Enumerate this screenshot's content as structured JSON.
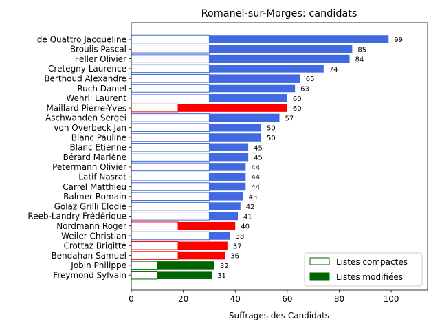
{
  "chart_data": {
    "type": "bar",
    "orientation": "horizontal",
    "stacked": true,
    "title": "Romanel-sur-Morges: candidats",
    "xlabel": "Suffrages des Candidats",
    "ylabel": "",
    "xlim": [
      0,
      114
    ],
    "xticks": [
      "0",
      "20",
      "40",
      "60",
      "80",
      "100"
    ],
    "grid": false,
    "legend_position": "lower-right",
    "legend": [
      {
        "label": "Listes compactes",
        "style": "outline",
        "color": "#006400"
      },
      {
        "label": "Listes modifiées",
        "style": "filled",
        "color": "#006400"
      }
    ],
    "group_colors": {
      "blue": "#4169e1",
      "red": "#ff0000",
      "green": "#006400"
    },
    "categories": [
      "de Quattro Jacqueline",
      "Broulis Pascal",
      "Feller Olivier",
      "Cretegny Laurence",
      "Berthoud Alexandre",
      "Ruch Daniel",
      "Wehrli Laurent",
      "Maillard Pierre-Yves",
      "Aschwanden Sergei",
      "von Overbeck Jan",
      "Blanc Pauline",
      "Blanc Etienne",
      "Bérard Marlène",
      "Petermann Olivier",
      "Latif Nasrat",
      "Carrel Matthieu",
      "Balmer Romain",
      "Golaz Grilli Elodie",
      "Reeb-Landry Frédérique",
      "Nordmann Roger",
      "Weiler Christian",
      "Crottaz Brigitte",
      "Bendahan Samuel",
      "Jobin Philippe",
      "Freymond Sylvain"
    ],
    "series": [
      {
        "name": "Listes compactes",
        "values": [
          30,
          30,
          30,
          30,
          30,
          30,
          30,
          18,
          30,
          30,
          30,
          30,
          30,
          30,
          30,
          30,
          30,
          30,
          30,
          18,
          30,
          18,
          18,
          10,
          10
        ]
      },
      {
        "name": "Listes modifiées",
        "values": [
          69,
          55,
          54,
          44,
          35,
          33,
          30,
          42,
          27,
          20,
          20,
          15,
          15,
          14,
          14,
          14,
          13,
          12,
          11,
          22,
          8,
          19,
          18,
          22,
          21
        ]
      }
    ],
    "totals": [
      "99",
      "85",
      "84",
      "74",
      "65",
      "63",
      "60",
      "60",
      "57",
      "50",
      "50",
      "45",
      "45",
      "44",
      "44",
      "44",
      "43",
      "42",
      "41",
      "40",
      "38",
      "37",
      "36",
      "32",
      "31"
    ],
    "bar_colors": [
      "blue",
      "blue",
      "blue",
      "blue",
      "blue",
      "blue",
      "blue",
      "red",
      "blue",
      "blue",
      "blue",
      "blue",
      "blue",
      "blue",
      "blue",
      "blue",
      "blue",
      "blue",
      "blue",
      "red",
      "blue",
      "red",
      "red",
      "green",
      "green"
    ]
  }
}
